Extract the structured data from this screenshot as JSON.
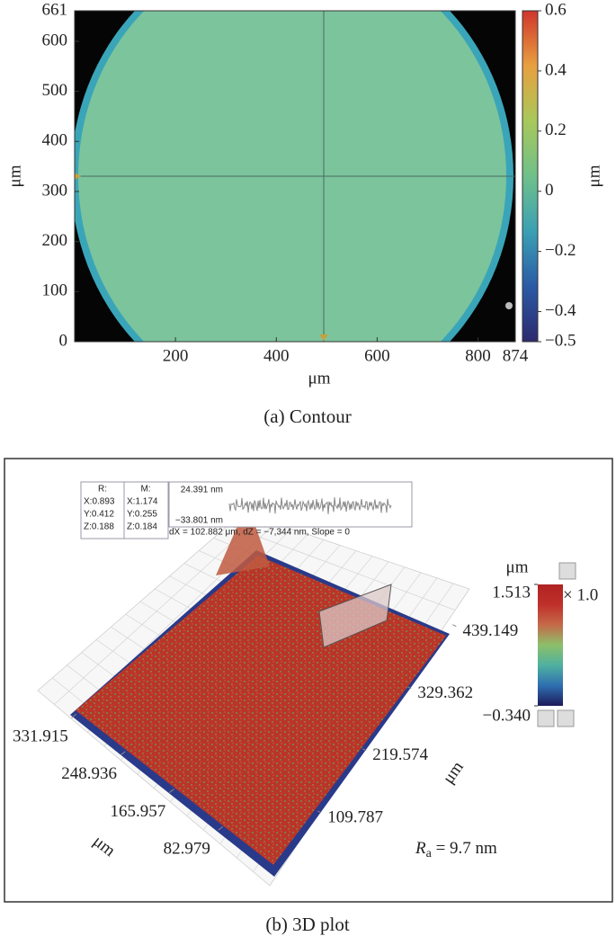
{
  "chart_data": [
    {
      "type": "contour",
      "caption": "(a) Contour",
      "xlabel": "μm",
      "ylabel": "μm",
      "colorbar_label": "μm",
      "xlim": [
        0,
        874
      ],
      "xticks": [
        200,
        400,
        600,
        800,
        874
      ],
      "ylim": [
        0,
        661
      ],
      "yticks": [
        0,
        100,
        200,
        300,
        400,
        500,
        600,
        661
      ],
      "clim": [
        -0.5,
        0.6
      ],
      "cticks": [
        {
          "value": -0.5,
          "label": "−0.5"
        },
        {
          "value": -0.4,
          "label": "−0.4"
        },
        {
          "value": -0.2,
          "label": "−0.2"
        },
        0,
        0.2,
        0.4,
        0.6
      ],
      "colormap": [
        "#2d2a6e",
        "#2b5aa6",
        "#3aa0b4",
        "#6fc08a",
        "#a8c85a",
        "#e8a040",
        "#d0352c"
      ]
    },
    {
      "type": "surface",
      "caption": "(b) 3D plot",
      "xlabel": "μm",
      "ylabel": "μm",
      "colorbar_label": "μm",
      "colorbar_scale": "× 1.0",
      "xlim": [
        0,
        350
      ],
      "xticks": [
        82.979,
        165.957,
        248.936,
        331.915
      ],
      "ylim": [
        0,
        445
      ],
      "yticks": [
        109.787,
        219.574,
        329.362,
        439.149
      ],
      "clim": [
        -0.34,
        1.513
      ],
      "cticks": [
        1.513,
        {
          "value": -0.34,
          "label": "−0.340"
        }
      ],
      "colormap": [
        "#1c1a5a",
        "#2f6fb0",
        "#4fb0a0",
        "#8cc06a",
        "#c46a48",
        "#c0302a",
        "#b02222"
      ],
      "annotation": {
        "symbol": "R",
        "subscript": "a",
        "text": " = 9.7 nm"
      },
      "readout": {
        "headers": [
          "R:",
          "M:"
        ],
        "rows": [
          [
            "X:0.893",
            "X:1.174"
          ],
          [
            "Y:0.412",
            "Y:0.255"
          ],
          [
            "Z:0.188",
            "Z:0.184"
          ]
        ]
      },
      "profile": {
        "max_label": "24.391 nm",
        "min_label": "−33.801 nm",
        "summary": "dX = 102.882 μm, dZ = −7,344 nm, Slope = 0"
      }
    }
  ]
}
